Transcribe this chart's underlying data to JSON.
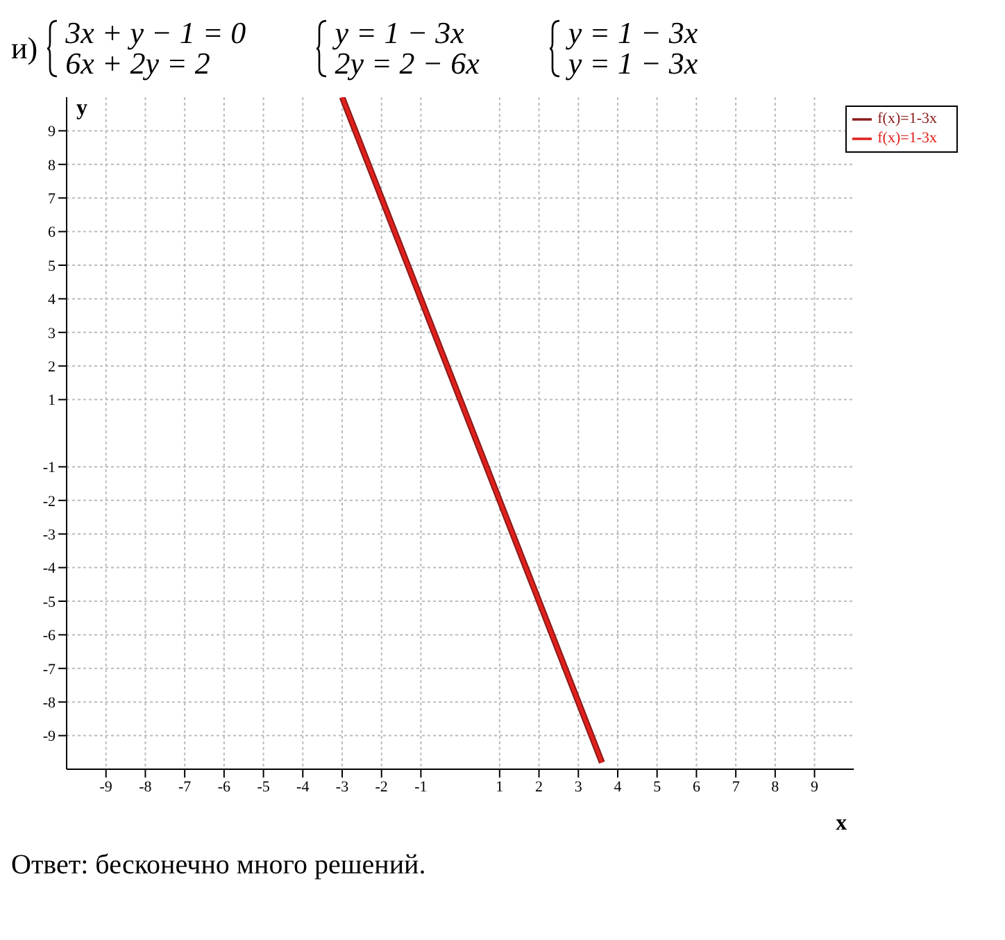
{
  "chart_data": {
    "type": "line",
    "xlabel": "x",
    "ylabel": "y",
    "annotations": [
      "и)",
      "3x + y − 1 = 0",
      "6x + 2y = 2",
      "y = 1 − 3x",
      "2y = 2 − 6x",
      "y = 1 − 3x",
      "y = 1 − 3x",
      "Ответ: бесконечно много решений."
    ],
    "x": [
      -3,
      3.6
    ],
    "series": [
      {
        "name": "f(x)=1-3x",
        "color": "#8b1a1a",
        "values": [
          10,
          -9.8
        ]
      },
      {
        "name": "f(x)=1-3x",
        "color": "#e0201c",
        "values": [
          10,
          -9.8
        ]
      }
    ],
    "xlim": [
      -10,
      10
    ],
    "xticks": [
      -9,
      -8,
      -7,
      -6,
      -5,
      -4,
      -3,
      -2,
      -1,
      1,
      2,
      3,
      4,
      5,
      6,
      7,
      8,
      9
    ],
    "ylim": [
      -10,
      10
    ],
    "yticks": [
      -9,
      -8,
      -7,
      -6,
      -5,
      -4,
      -3,
      -2,
      -1,
      1,
      2,
      3,
      4,
      5,
      6,
      7,
      8,
      9
    ],
    "grid": true,
    "legend": "top right",
    "marker": "none",
    "line_style": "solid"
  }
}
